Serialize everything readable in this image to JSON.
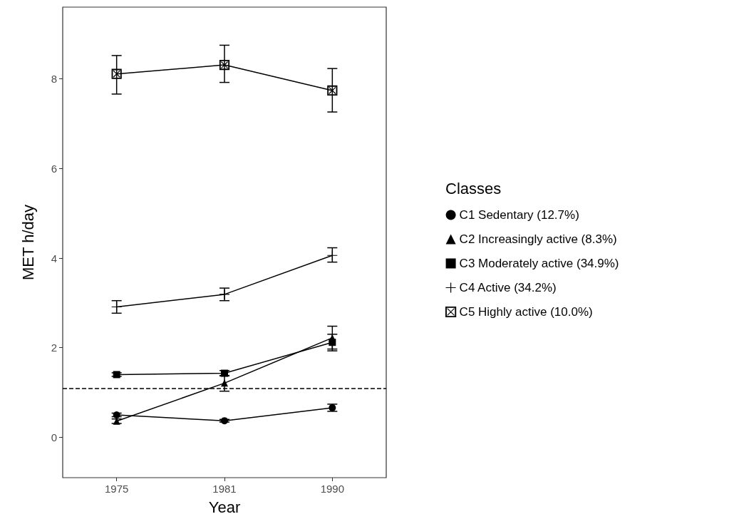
{
  "chart_data": {
    "type": "line",
    "xlabel": "Year",
    "ylabel": "MET h/day",
    "legend_title": "Classes",
    "categories": [
      "1975",
      "1981",
      "1990"
    ],
    "ylim": [
      -0.9,
      9.6
    ],
    "yticks": [
      0,
      2,
      4,
      6,
      8
    ],
    "grid": false,
    "legend": "right",
    "line_style": "solid",
    "ref_lines": [
      {
        "axis": "y",
        "value": 1.1,
        "line_style": "dashed",
        "color": "#000000"
      }
    ],
    "series": [
      {
        "name": "C1 Sedentary (12.7%)",
        "color": "#000000",
        "marker": "circle",
        "values": [
          0.5,
          0.37,
          0.66
        ],
        "errors": [
          0.04,
          0.03,
          0.08
        ]
      },
      {
        "name": "C2 Increasingly active (8.3%)",
        "color": "#000000",
        "marker": "triangle",
        "values": [
          0.36,
          1.21,
          2.22
        ],
        "errors": [
          0.05,
          [
            1.03,
            1.38
          ],
          [
            1.93,
            2.48
          ]
        ]
      },
      {
        "name": "C3 Moderately active (34.9%)",
        "color": "#000000",
        "marker": "square",
        "values": [
          1.4,
          1.43,
          2.12
        ],
        "errors": [
          0.04,
          0.06,
          [
            1.97,
            2.3
          ]
        ]
      },
      {
        "name": "C4 Active (34.2%)",
        "color": "#000000",
        "marker": "cross",
        "values": [
          2.91,
          3.19,
          4.06
        ],
        "errors": [
          [
            2.77,
            3.05
          ],
          [
            3.05,
            3.33
          ],
          [
            3.91,
            4.23
          ]
        ]
      },
      {
        "name": "C5 Highly active (10.0%)",
        "color": "#000000",
        "marker": "cross",
        "values": [
          8.11,
          8.31,
          7.74
        ],
        "errors": [
          [
            7.66,
            8.52
          ],
          [
            7.92,
            8.75
          ],
          [
            7.26,
            8.23
          ]
        ]
      }
    ]
  }
}
